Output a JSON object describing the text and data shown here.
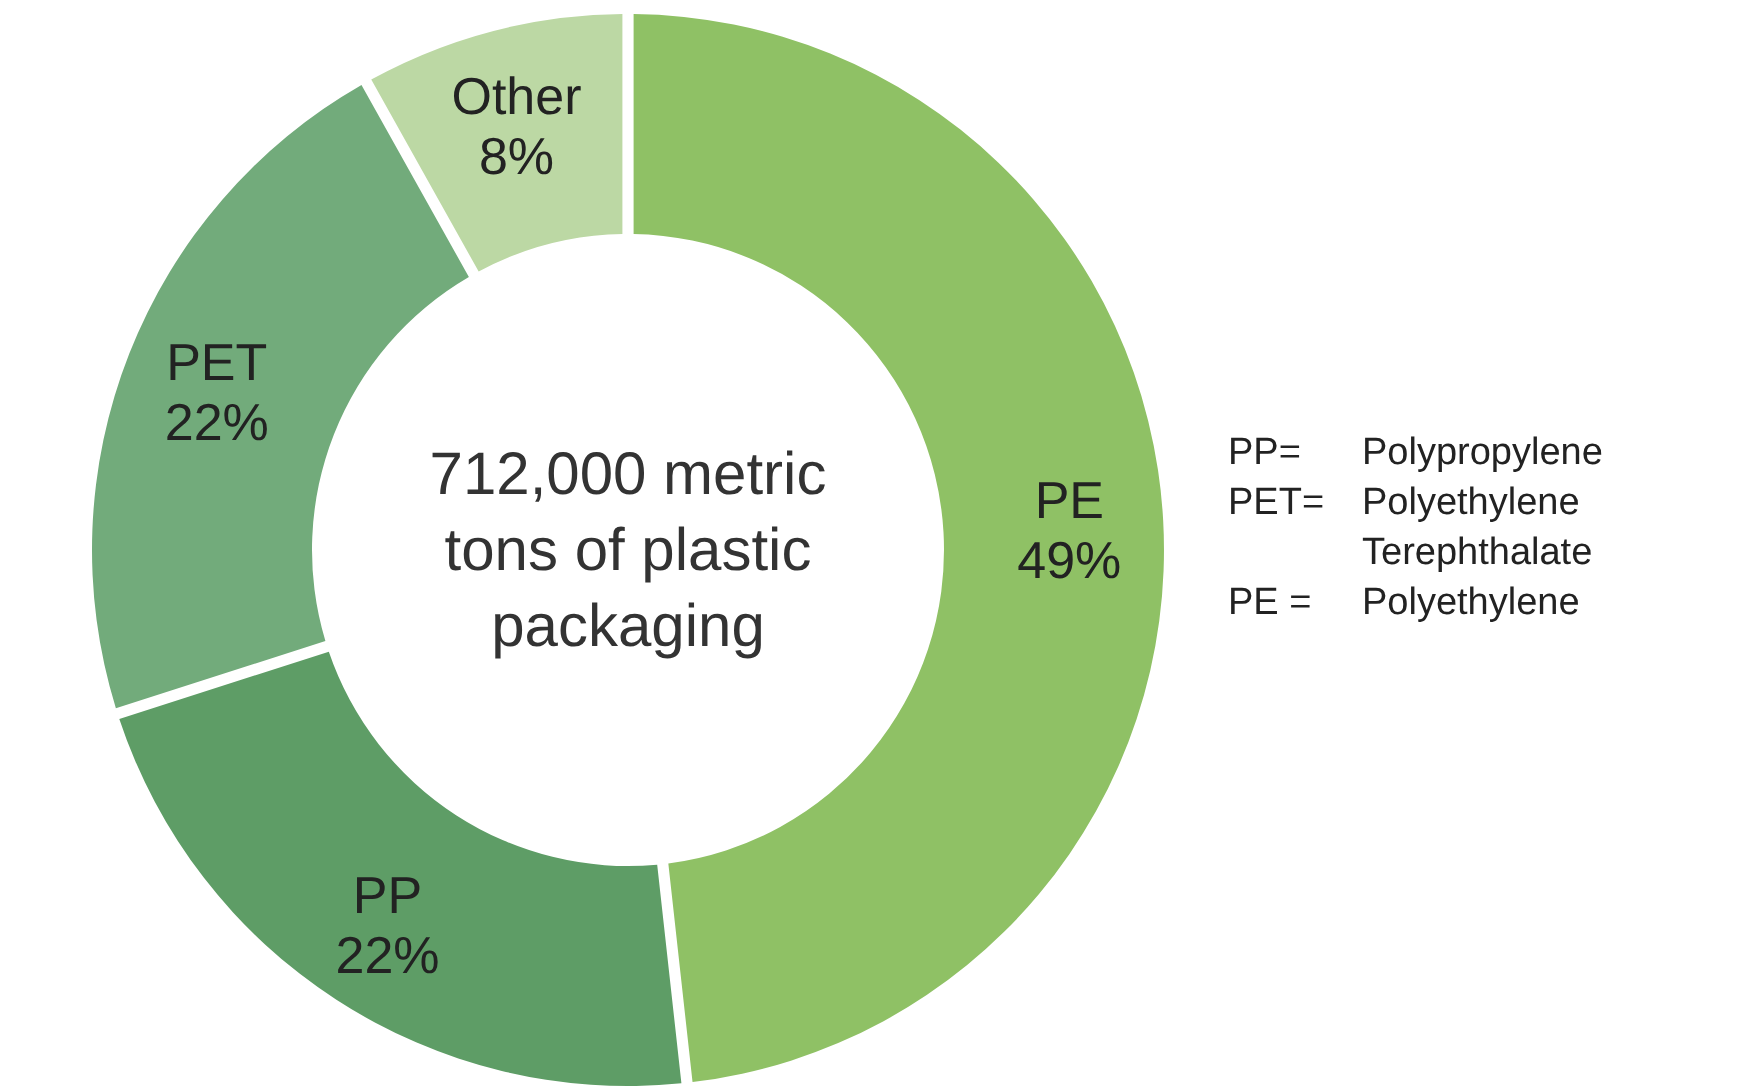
{
  "chart_data": {
    "type": "donut",
    "title": "712,000 metric tons of plastic packaging",
    "categories": [
      "PE",
      "PP",
      "PET",
      "Other"
    ],
    "values": [
      49,
      22,
      22,
      8
    ],
    "value_labels": [
      "49%",
      "22%",
      "22%",
      "8%"
    ],
    "colors": [
      "#8fc165",
      "#5e9d66",
      "#72ab7b",
      "#bcd8a4"
    ],
    "annotations": [
      "PP= Polypropylene",
      "PET= Polyethylene Terephthalate",
      "PE = Polyethylene"
    ]
  }
}
